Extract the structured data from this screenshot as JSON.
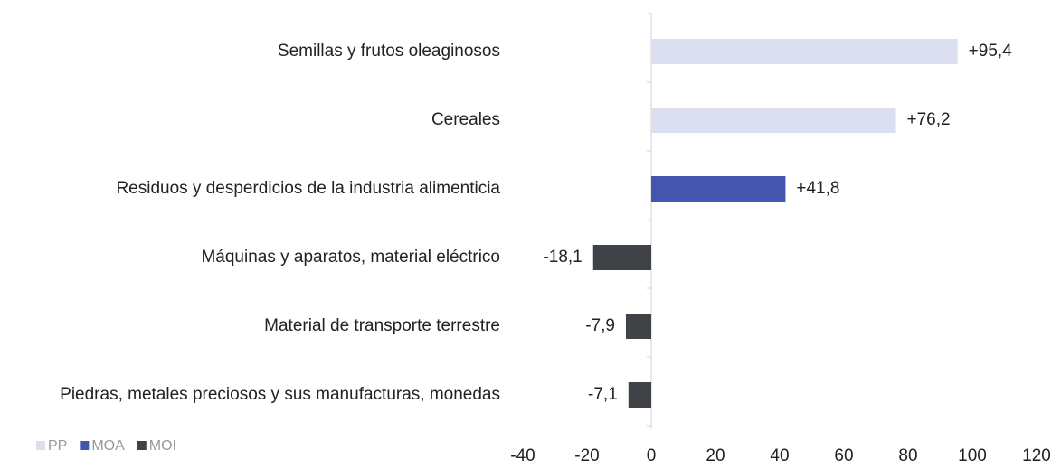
{
  "chart_data": {
    "type": "bar",
    "orientation": "horizontal",
    "categories": [
      "Semillas y frutos oleaginosos",
      "Cereales",
      "Residuos y desperdicios de la industria alimenticia",
      "Máquinas y aparatos, material eléctrico",
      "Material de transporte terrestre",
      "Piedras, metales preciosos y sus manufacturas, monedas"
    ],
    "series": [
      {
        "name": "PP",
        "color": "#dcdff0",
        "values": [
          95.4,
          76.2,
          null,
          null,
          null,
          null
        ],
        "value_labels": [
          "+95,4",
          "+76,2",
          null,
          null,
          null,
          null
        ]
      },
      {
        "name": "MOA",
        "color": "#4355ad",
        "values": [
          null,
          null,
          41.8,
          null,
          null,
          null
        ],
        "value_labels": [
          null,
          null,
          "+41,8",
          null,
          null,
          null
        ]
      },
      {
        "name": "MOI",
        "color": "#3f4347",
        "values": [
          null,
          null,
          null,
          -18.1,
          -7.9,
          -7.1
        ],
        "value_labels": [
          null,
          null,
          null,
          "-18,1",
          "-7,9",
          "-7,1"
        ]
      }
    ],
    "xlim": [
      -40,
      120
    ],
    "xticks": [
      -40,
      -20,
      0,
      20,
      40,
      60,
      80,
      100,
      120
    ],
    "legend": "bottom-left"
  }
}
